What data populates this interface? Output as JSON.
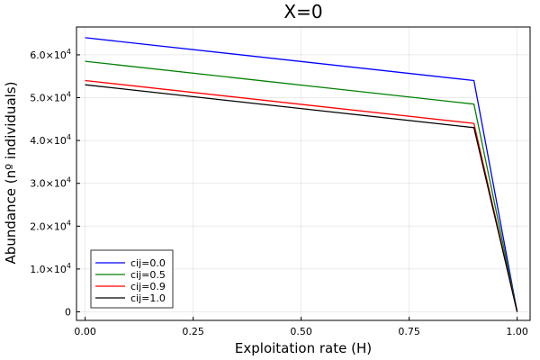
{
  "chart_data": {
    "type": "line",
    "title": "X=0",
    "xlabel": "Exploitation rate (H)",
    "ylabel": "Abundance (nº individuals)",
    "xlim": [
      -0.02,
      1.03
    ],
    "ylim": [
      -2000,
      66500
    ],
    "x_ticks": [
      0.0,
      0.25,
      0.5,
      0.75,
      1.0
    ],
    "x_tick_labels": [
      "0.00",
      "0.25",
      "0.50",
      "0.75",
      "1.00"
    ],
    "y_ticks": [
      0,
      10000,
      20000,
      30000,
      40000,
      50000,
      60000
    ],
    "y_tick_labels": [
      {
        "mantissa": "0",
        "exp": ""
      },
      {
        "mantissa": "1.0×10",
        "exp": "4"
      },
      {
        "mantissa": "2.0×10",
        "exp": "4"
      },
      {
        "mantissa": "3.0×10",
        "exp": "4"
      },
      {
        "mantissa": "4.0×10",
        "exp": "4"
      },
      {
        "mantissa": "5.0×10",
        "exp": "4"
      },
      {
        "mantissa": "6.0×10",
        "exp": "4"
      }
    ],
    "grid": true,
    "legend_position": "bottom-left",
    "series": [
      {
        "name": "cij=0.0",
        "color": "#0000ff",
        "x": [
          0.0,
          0.9,
          1.0
        ],
        "y": [
          64000,
          54000,
          0
        ]
      },
      {
        "name": "cij=0.5",
        "color": "#008000",
        "x": [
          0.0,
          0.9,
          1.0
        ],
        "y": [
          58500,
          48500,
          0
        ]
      },
      {
        "name": "cij=0.9",
        "color": "#ff0000",
        "x": [
          0.0,
          0.9,
          1.0
        ],
        "y": [
          54000,
          44000,
          0
        ]
      },
      {
        "name": "cij=1.0",
        "color": "#000000",
        "x": [
          0.0,
          0.9,
          1.0
        ],
        "y": [
          53000,
          43000,
          0
        ]
      }
    ]
  }
}
